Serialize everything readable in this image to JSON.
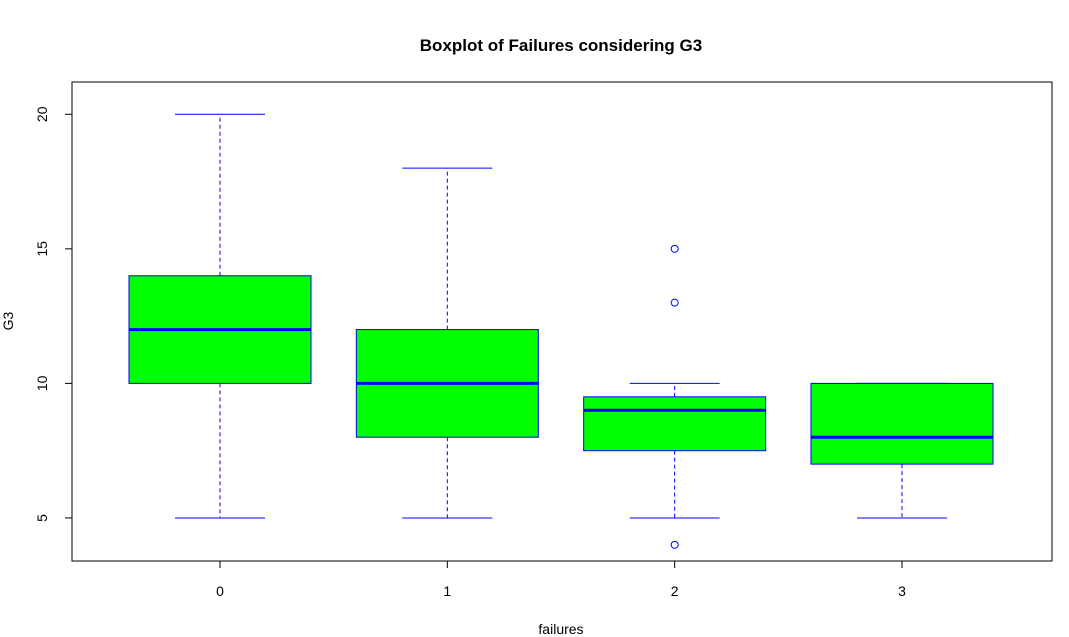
{
  "chart_data": {
    "type": "boxplot",
    "title": "Boxplot of Failures considering G3",
    "xlabel": "failures",
    "ylabel": "G3",
    "categories": [
      "0",
      "1",
      "2",
      "3"
    ],
    "yticks": [
      5,
      10,
      15,
      20
    ],
    "ylim": [
      3.4,
      21.2
    ],
    "grid": false,
    "boxes": [
      {
        "category": "0",
        "whisker_low": 5,
        "q1": 10,
        "median": 12,
        "q3": 14,
        "whisker_high": 20,
        "outliers": []
      },
      {
        "category": "1",
        "whisker_low": 5,
        "q1": 8,
        "median": 10,
        "q3": 12,
        "whisker_high": 18,
        "outliers": []
      },
      {
        "category": "2",
        "whisker_low": 5,
        "q1": 7.5,
        "median": 9,
        "q3": 9.5,
        "whisker_high": 10,
        "outliers": [
          15,
          13,
          4
        ]
      },
      {
        "category": "3",
        "whisker_low": 5,
        "q1": 7,
        "median": 8,
        "q3": 10,
        "whisker_high": 10,
        "outliers": []
      }
    ],
    "colors": {
      "box_fill": "#00ff00",
      "border": "#0000ff"
    }
  }
}
